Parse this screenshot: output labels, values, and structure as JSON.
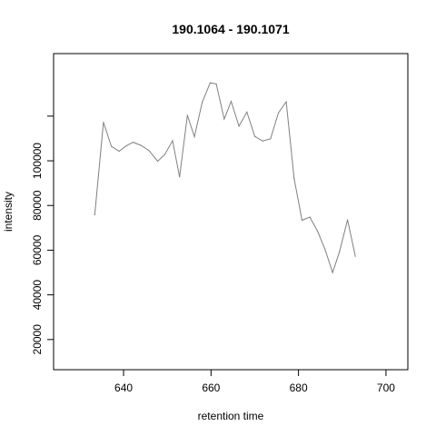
{
  "chart_data": {
    "type": "line",
    "title": "190.1064 - 190.1071",
    "xlabel": "retention time",
    "ylabel": "intensity",
    "xlim": [
      624,
      705
    ],
    "ylim": [
      6500,
      148000
    ],
    "x_ticks": [
      640,
      660,
      680,
      700
    ],
    "y_ticks": [
      20000,
      40000,
      60000,
      80000,
      100000
    ],
    "x_tick_labels": [
      "640",
      "660",
      "680",
      "700"
    ],
    "y_tick_labels": [
      "20000",
      "40000",
      "60000",
      "80000",
      "100000"
    ],
    "grid": false,
    "legend": "none",
    "line_color": "#808080",
    "series": [
      {
        "x": [
          633.4,
          635.4,
          637.2,
          639.0,
          640.6,
          642.2,
          644.0,
          645.8,
          647.8,
          649.4,
          651.2,
          652.8,
          654.6,
          656.2,
          658.0,
          659.8,
          661.2,
          663.0,
          664.6,
          666.4,
          668.2,
          670.0,
          671.8,
          673.6,
          675.4,
          677.2,
          679.0,
          680.8,
          682.6,
          684.4,
          686.0,
          687.8,
          689.4,
          691.2,
          693.0
        ],
        "y": [
          75800,
          117200,
          106500,
          104300,
          106700,
          108300,
          106900,
          104600,
          99800,
          102800,
          109000,
          92800,
          120400,
          110800,
          126300,
          134900,
          134400,
          118700,
          126600,
          115500,
          121800,
          110900,
          108900,
          109800,
          121400,
          126400,
          92100,
          73400,
          74800,
          68300,
          60700,
          50000,
          59500,
          73600,
          57300
        ]
      }
    ]
  }
}
